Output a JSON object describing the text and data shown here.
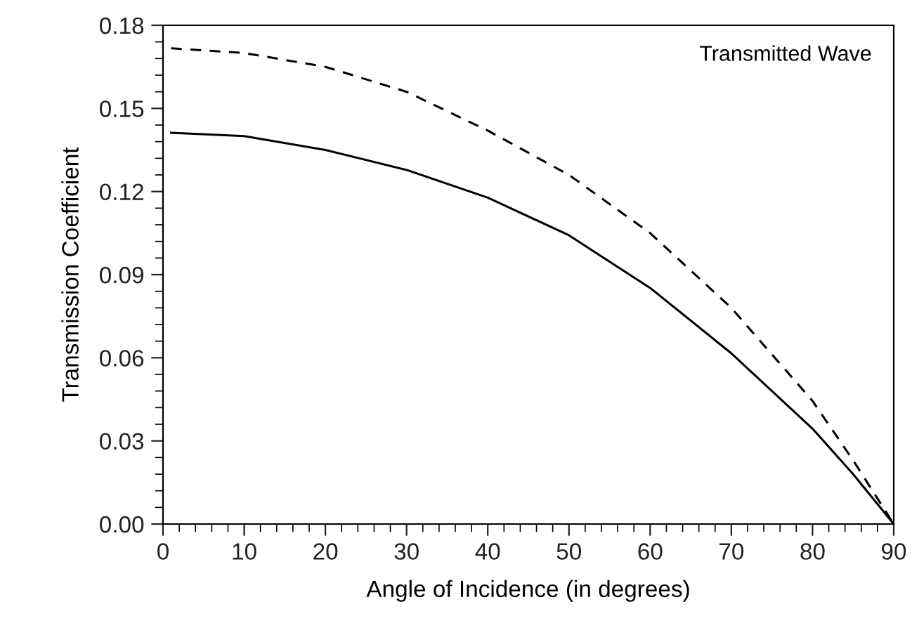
{
  "chart_data": {
    "type": "line",
    "xlabel": "Angle of Incidence (in degrees)",
    "ylabel": "Transmission Coefficient",
    "annotations": [
      "Transmitted Wave"
    ],
    "xlim": [
      0,
      90
    ],
    "xticks": [
      0,
      10,
      20,
      30,
      40,
      50,
      60,
      70,
      80,
      90
    ],
    "ylim": [
      0,
      0.18
    ],
    "yticks": [
      {
        "value": 0,
        "label": "0.00"
      },
      {
        "value": 0.03,
        "label": "0.03"
      },
      {
        "value": 0.06,
        "label": "0.06"
      },
      {
        "value": 0.09,
        "label": "0.09"
      },
      {
        "value": 0.12,
        "label": "0.12"
      },
      {
        "value": 0.15,
        "label": "0.15"
      },
      {
        "value": 0.18,
        "label": "0.18"
      }
    ],
    "grid": false,
    "legend": false,
    "marker": "none",
    "series": [
      {
        "color": "#000000",
        "line_style": "solid",
        "x": [
          1,
          10,
          20,
          30,
          40,
          50,
          60,
          70,
          80,
          85,
          90
        ],
        "values": [
          0.1412,
          0.14,
          0.135,
          0.1278,
          0.1178,
          0.1042,
          0.0852,
          0.0616,
          0.0344,
          0.018,
          0
        ]
      },
      {
        "color": "#000000",
        "line_style": "dashed",
        "x": [
          1,
          10,
          20,
          30,
          40,
          50,
          60,
          70,
          80,
          85,
          90
        ],
        "values": [
          0.1717,
          0.17,
          0.165,
          0.156,
          0.142,
          0.126,
          0.105,
          0.078,
          0.0444,
          0.023,
          0
        ]
      }
    ]
  }
}
